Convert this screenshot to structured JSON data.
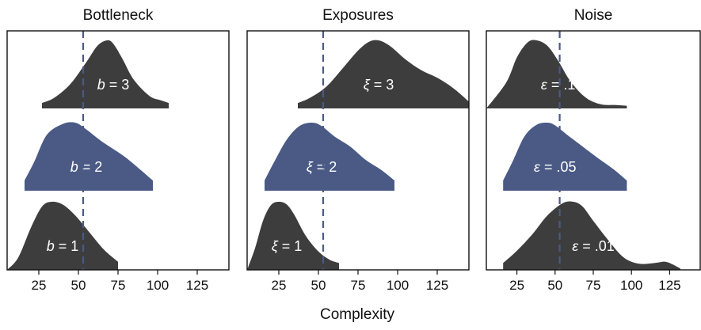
{
  "chart_data": {
    "type": "area",
    "xlabel": "Complexity",
    "xticks": [
      25,
      50,
      75,
      100,
      125
    ],
    "xlim": [
      5,
      145
    ],
    "colors": {
      "default": "#3d3d3d",
      "highlight": "#4a5a85",
      "reference_line": "#4a5a85"
    },
    "reference_x": 53,
    "panels": [
      {
        "title": "Bottleneck",
        "rows": [
          {
            "symbol": "b",
            "value": "3",
            "highlight": false,
            "x": [
              27,
              35,
              45,
              55,
              62,
              68,
              72,
              78,
              85,
              95,
              102,
              107
            ],
            "density": [
              0.08,
              0.16,
              0.36,
              0.68,
              0.92,
              1.0,
              0.95,
              0.72,
              0.42,
              0.18,
              0.12,
              0.08
            ]
          },
          {
            "symbol": "b",
            "value": "2",
            "highlight": true,
            "x": [
              16,
              22,
              30,
              40,
              48,
              55,
              65,
              78,
              88,
              97
            ],
            "density": [
              0.15,
              0.42,
              0.82,
              0.98,
              1.0,
              0.9,
              0.72,
              0.52,
              0.33,
              0.15
            ]
          },
          {
            "symbol": "b",
            "value": "1",
            "highlight": false,
            "x": [
              5,
              12,
              20,
              27,
              33,
              40,
              48,
              57,
              66,
              75
            ],
            "density": [
              0.0,
              0.18,
              0.62,
              0.93,
              1.0,
              0.96,
              0.8,
              0.55,
              0.3,
              0.12
            ]
          }
        ]
      },
      {
        "title": "Exposures",
        "rows": [
          {
            "symbol": "ξ",
            "value": "3",
            "highlight": false,
            "x": [
              37,
              45,
              55,
              65,
              75,
              82,
              88,
              95,
              105,
              115,
              125,
              135,
              145
            ],
            "density": [
              0.08,
              0.16,
              0.32,
              0.58,
              0.85,
              0.98,
              1.0,
              0.92,
              0.72,
              0.56,
              0.45,
              0.3,
              0.1
            ]
          },
          {
            "symbol": "ξ",
            "value": "2",
            "highlight": true,
            "x": [
              16,
              22,
              30,
              38,
              46,
              52,
              60,
              70,
              80,
              90,
              98
            ],
            "density": [
              0.15,
              0.42,
              0.75,
              0.95,
              1.0,
              0.95,
              0.8,
              0.65,
              0.45,
              0.3,
              0.15
            ]
          },
          {
            "symbol": "ξ",
            "value": "1",
            "highlight": false,
            "x": [
              5,
              10,
              15,
              20,
              25,
              30,
              35,
              42,
              50,
              57,
              63
            ],
            "density": [
              0.0,
              0.32,
              0.72,
              0.95,
              1.0,
              0.96,
              0.8,
              0.5,
              0.27,
              0.15,
              0.1
            ]
          }
        ]
      },
      {
        "title": "Noise",
        "rows": [
          {
            "symbol": "ε",
            "value": ".1",
            "highlight": false,
            "x": [
              5,
              18,
              25,
              32,
              38,
              45,
              52,
              60,
              70,
              80,
              90,
              97
            ],
            "density": [
              0.0,
              0.38,
              0.75,
              0.97,
              1.0,
              0.92,
              0.7,
              0.4,
              0.16,
              0.06,
              0.05,
              0.04
            ]
          },
          {
            "symbol": "ε",
            "value": ".05",
            "highlight": true,
            "x": [
              16,
              22,
              30,
              38,
              45,
              50,
              58,
              68,
              78,
              88,
              97
            ],
            "density": [
              0.15,
              0.42,
              0.8,
              0.97,
              1.0,
              0.96,
              0.82,
              0.65,
              0.48,
              0.32,
              0.15
            ]
          },
          {
            "symbol": "ε",
            "value": ".01",
            "highlight": false,
            "x": [
              16,
              25,
              35,
              45,
              55,
              62,
              68,
              75,
              85,
              95,
              105,
              115,
              122,
              127,
              132
            ],
            "density": [
              0.1,
              0.28,
              0.52,
              0.8,
              0.98,
              1.0,
              0.93,
              0.72,
              0.43,
              0.18,
              0.09,
              0.1,
              0.12,
              0.08,
              0.02
            ]
          }
        ]
      }
    ]
  }
}
